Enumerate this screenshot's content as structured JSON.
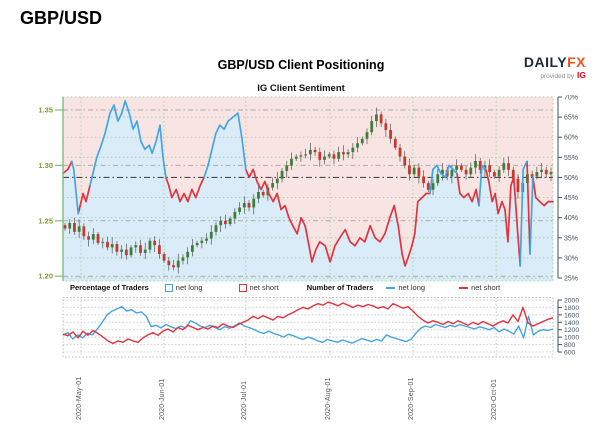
{
  "page": {
    "symbol_title": "GBP/USD"
  },
  "header": {
    "title": "GBP/USD Client Positioning",
    "subtitle": "IG Client Sentiment"
  },
  "logo": {
    "daily": "DAILY",
    "fx": "FX",
    "provided_by": "provided by",
    "ig": "IG"
  },
  "legend": {
    "pct_header": "Percentage of Traders",
    "pct_net_long": "net long",
    "pct_net_short": "net short",
    "num_header": "Number of Traders",
    "num_net_long": "net long",
    "num_net_short": "net short"
  },
  "colors": {
    "sentiment_blue": "#45a5e0",
    "sentiment_red": "#e0343e",
    "candle_up": "#3f7d3b",
    "candle_down": "#c23b2e",
    "wick": "#555555",
    "bg_pink": "#f8e5e3",
    "bg_blue": "#d9ecf8",
    "grid_green": "#a8d3a8",
    "axis_green": "#7cbf7c",
    "axis_olive": "#8b972f",
    "axis_gray_text": "#44505a",
    "fifty_line": "#4a4a4a",
    "price_dash": "#aaaaaa",
    "frame_gray": "#bbbbbb",
    "grid_gray": "#cccccc"
  },
  "chart_data": [
    {
      "type": "candlestick+line",
      "title": "GBP/USD Client Positioning",
      "subtitle": "IG Client Sentiment",
      "price_axis": {
        "ticks": [
          "1.35",
          "1.30",
          "1.25",
          "1.20"
        ],
        "values": [
          1.35,
          1.3,
          1.25,
          1.2
        ]
      },
      "pct_axis": {
        "min": 25,
        "max": 70,
        "step": 5,
        "ticks": [
          "70%",
          "65%",
          "60%",
          "55%",
          "50%",
          "45%",
          "40%",
          "35%",
          "30%",
          "25%"
        ]
      },
      "x_axis": {
        "labels": [
          "2020-May-01",
          "2020-Jun-01",
          "2020-Jul-01",
          "2020-Aug-01",
          "2020-Sep-01",
          "2020-Oct-01"
        ],
        "fractions": [
          0.037,
          0.206,
          0.373,
          0.545,
          0.714,
          0.884
        ]
      },
      "candles": {
        "closes": [
          1.243,
          1.248,
          1.24,
          1.245,
          1.236,
          1.233,
          1.238,
          1.23,
          1.231,
          1.226,
          1.229,
          1.222,
          1.224,
          1.219,
          1.226,
          1.228,
          1.221,
          1.224,
          1.232,
          1.228,
          1.22,
          1.214,
          1.21,
          1.208,
          1.214,
          1.217,
          1.222,
          1.228,
          1.23,
          1.232,
          1.234,
          1.24,
          1.246,
          1.25,
          1.247,
          1.252,
          1.258,
          1.262,
          1.266,
          1.262,
          1.27,
          1.276,
          1.273,
          1.28,
          1.284,
          1.288,
          1.295,
          1.3,
          1.306,
          1.308,
          1.309,
          1.31,
          1.314,
          1.312,
          1.305,
          1.308,
          1.31,
          1.306,
          1.312,
          1.31,
          1.312,
          1.316,
          1.32,
          1.324,
          1.33,
          1.34,
          1.346,
          1.338,
          1.332,
          1.324,
          1.316,
          1.308,
          1.3,
          1.292,
          1.298,
          1.29,
          1.284,
          1.278,
          1.284,
          1.292,
          1.296,
          1.29,
          1.296,
          1.3,
          1.296,
          1.292,
          1.298,
          1.304,
          1.296,
          1.3,
          1.294,
          1.29,
          1.296,
          1.302,
          1.296,
          1.288,
          1.276,
          1.284,
          1.292,
          1.29,
          1.294,
          1.296,
          1.292,
          1.294
        ]
      },
      "sentiment": {
        "name_long": "net long",
        "name_short": "net short",
        "points": [
          [
            0.0,
            51,
            "r"
          ],
          [
            0.01,
            52,
            "r"
          ],
          [
            0.018,
            54,
            "r"
          ],
          [
            0.022,
            52,
            "b"
          ],
          [
            0.031,
            41,
            "b"
          ],
          [
            0.035,
            43,
            "r"
          ],
          [
            0.041,
            46,
            "r"
          ],
          [
            0.047,
            44,
            "r"
          ],
          [
            0.055,
            48,
            "r"
          ],
          [
            0.061,
            51,
            "b"
          ],
          [
            0.069,
            55,
            "b"
          ],
          [
            0.078,
            58,
            "b"
          ],
          [
            0.086,
            61,
            "b"
          ],
          [
            0.096,
            66,
            "b"
          ],
          [
            0.104,
            68,
            "b"
          ],
          [
            0.112,
            64,
            "b"
          ],
          [
            0.12,
            66,
            "b"
          ],
          [
            0.127,
            69,
            "b"
          ],
          [
            0.135,
            66,
            "b"
          ],
          [
            0.143,
            62,
            "b"
          ],
          [
            0.151,
            64,
            "b"
          ],
          [
            0.159,
            59,
            "b"
          ],
          [
            0.167,
            57,
            "b"
          ],
          [
            0.176,
            58,
            "b"
          ],
          [
            0.182,
            56,
            "b"
          ],
          [
            0.19,
            59,
            "b"
          ],
          [
            0.198,
            63,
            "b"
          ],
          [
            0.204,
            55,
            "b"
          ],
          [
            0.21,
            50,
            "b"
          ],
          [
            0.216,
            48,
            "r"
          ],
          [
            0.222,
            45,
            "r"
          ],
          [
            0.231,
            47,
            "r"
          ],
          [
            0.239,
            44,
            "r"
          ],
          [
            0.247,
            46,
            "r"
          ],
          [
            0.255,
            44,
            "r"
          ],
          [
            0.263,
            47,
            "r"
          ],
          [
            0.271,
            45,
            "r"
          ],
          [
            0.28,
            48,
            "r"
          ],
          [
            0.288,
            50,
            "r"
          ],
          [
            0.296,
            53,
            "b"
          ],
          [
            0.304,
            57,
            "b"
          ],
          [
            0.312,
            61,
            "b"
          ],
          [
            0.32,
            63,
            "b"
          ],
          [
            0.329,
            62,
            "b"
          ],
          [
            0.337,
            64,
            "b"
          ],
          [
            0.347,
            65,
            "b"
          ],
          [
            0.357,
            66,
            "b"
          ],
          [
            0.365,
            60,
            "b"
          ],
          [
            0.373,
            52,
            "b"
          ],
          [
            0.38,
            50,
            "r"
          ],
          [
            0.388,
            52,
            "r"
          ],
          [
            0.396,
            49,
            "r"
          ],
          [
            0.404,
            47,
            "r"
          ],
          [
            0.412,
            49,
            "r"
          ],
          [
            0.42,
            46,
            "r"
          ],
          [
            0.429,
            44,
            "r"
          ],
          [
            0.437,
            46,
            "r"
          ],
          [
            0.445,
            42,
            "r"
          ],
          [
            0.453,
            43,
            "r"
          ],
          [
            0.461,
            40,
            "r"
          ],
          [
            0.469,
            38,
            "r"
          ],
          [
            0.478,
            36,
            "r"
          ],
          [
            0.486,
            40,
            "r"
          ],
          [
            0.494,
            38,
            "r"
          ],
          [
            0.502,
            33,
            "r"
          ],
          [
            0.508,
            29,
            "r"
          ],
          [
            0.516,
            32,
            "r"
          ],
          [
            0.524,
            34,
            "r"
          ],
          [
            0.535,
            33,
            "r"
          ],
          [
            0.545,
            29,
            "r"
          ],
          [
            0.555,
            33,
            "r"
          ],
          [
            0.565,
            35,
            "r"
          ],
          [
            0.576,
            37,
            "r"
          ],
          [
            0.586,
            34,
            "r"
          ],
          [
            0.596,
            33,
            "r"
          ],
          [
            0.606,
            35,
            "r"
          ],
          [
            0.616,
            34,
            "r"
          ],
          [
            0.627,
            38,
            "r"
          ],
          [
            0.637,
            35,
            "r"
          ],
          [
            0.647,
            34,
            "r"
          ],
          [
            0.657,
            36,
            "r"
          ],
          [
            0.667,
            40,
            "r"
          ],
          [
            0.676,
            43,
            "r"
          ],
          [
            0.684,
            38,
            "r"
          ],
          [
            0.692,
            31,
            "r"
          ],
          [
            0.698,
            28,
            "r"
          ],
          [
            0.704,
            30,
            "r"
          ],
          [
            0.712,
            33,
            "r"
          ],
          [
            0.718,
            36,
            "r"
          ],
          [
            0.724,
            44,
            "r"
          ],
          [
            0.733,
            45,
            "r"
          ],
          [
            0.741,
            46,
            "r"
          ],
          [
            0.749,
            46,
            "r"
          ],
          [
            0.755,
            52,
            "b"
          ],
          [
            0.763,
            53,
            "b"
          ],
          [
            0.771,
            51,
            "b"
          ],
          [
            0.78,
            50,
            "b"
          ],
          [
            0.788,
            53,
            "b"
          ],
          [
            0.796,
            52,
            "b"
          ],
          [
            0.804,
            51,
            "b"
          ],
          [
            0.81,
            46,
            "r"
          ],
          [
            0.818,
            45,
            "r"
          ],
          [
            0.827,
            46,
            "r"
          ],
          [
            0.835,
            44,
            "r"
          ],
          [
            0.843,
            47,
            "r"
          ],
          [
            0.849,
            43,
            "r"
          ],
          [
            0.855,
            53,
            "b"
          ],
          [
            0.863,
            52,
            "b"
          ],
          [
            0.869,
            49,
            "r"
          ],
          [
            0.876,
            44,
            "r"
          ],
          [
            0.882,
            46,
            "r"
          ],
          [
            0.888,
            41,
            "r"
          ],
          [
            0.896,
            44,
            "r"
          ],
          [
            0.902,
            42,
            "r"
          ],
          [
            0.908,
            34,
            "r"
          ],
          [
            0.914,
            48,
            "r"
          ],
          [
            0.92,
            50,
            "r"
          ],
          [
            0.927,
            38,
            "r"
          ],
          [
            0.933,
            28,
            "r"
          ],
          [
            0.939,
            52,
            "b"
          ],
          [
            0.947,
            54,
            "b"
          ],
          [
            0.953,
            31,
            "r"
          ],
          [
            0.959,
            50,
            "b"
          ],
          [
            0.965,
            45,
            "r"
          ],
          [
            0.973,
            44,
            "r"
          ],
          [
            0.982,
            43,
            "r"
          ],
          [
            0.99,
            44,
            "r"
          ],
          [
            1.0,
            44,
            "r"
          ]
        ]
      }
    },
    {
      "type": "line",
      "y_axis": {
        "min": 600,
        "max": 2000,
        "step": 200,
        "ticks": [
          "2000",
          "1800",
          "1600",
          "1400",
          "1200",
          "1000",
          "800",
          "600"
        ]
      },
      "series": [
        {
          "name": "net long",
          "color_key": "sentiment_blue",
          "values": [
            1060,
            1120,
            950,
            1060,
            980,
            1110,
            1060,
            1220,
            1400,
            1600,
            1700,
            1760,
            1820,
            1700,
            1740,
            1650,
            1680,
            1560,
            1280,
            1320,
            1250,
            1340,
            1280,
            1230,
            1300,
            1250,
            1440,
            1380,
            1300,
            1260,
            1320,
            1260,
            1200,
            1280,
            1240,
            1300,
            1380,
            1300,
            1260,
            1200,
            1140,
            1100,
            1160,
            1100,
            1060,
            1000,
            1080,
            1040,
            980,
            940,
            1000,
            960,
            900,
            860,
            940,
            900,
            860,
            920,
            880,
            840,
            900,
            960,
            920,
            880,
            940,
            900,
            1060,
            1000,
            960,
            920,
            880,
            940,
            1100,
            1240,
            1300,
            1260,
            1340,
            1300,
            1260,
            1320,
            1280,
            1340,
            1300,
            1260,
            1220,
            1280,
            1240,
            1200,
            1260,
            1140,
            1220,
            1160,
            1080,
            1300,
            980,
            1560,
            1060,
            1160,
            1200,
            1180,
            1220
          ]
        },
        {
          "name": "net short",
          "color_key": "sentiment_red",
          "values": [
            1080,
            1040,
            1140,
            980,
            1160,
            1050,
            1180,
            1100,
            1000,
            900,
            830,
            900,
            860,
            950,
            900,
            860,
            980,
            1060,
            1120,
            1050,
            1160,
            1220,
            1140,
            1260,
            1200,
            1320,
            1260,
            1200,
            1260,
            1220,
            1300,
            1260,
            1360,
            1300,
            1260,
            1340,
            1400,
            1460,
            1560,
            1500,
            1580,
            1520,
            1460,
            1560,
            1520,
            1600,
            1660,
            1740,
            1800,
            1760,
            1840,
            1900,
            1860,
            1940,
            1900,
            1840,
            1920,
            1860,
            1800,
            1860,
            1820,
            1880,
            1840,
            1780,
            1820,
            1760,
            1900,
            1840,
            1780,
            1820,
            1700,
            1560,
            1460,
            1380,
            1440,
            1400,
            1340,
            1420,
            1360,
            1440,
            1380,
            1320,
            1400,
            1340,
            1420,
            1360,
            1300,
            1380,
            1440,
            1380,
            1600,
            1420,
            1800,
            1380,
            1300,
            1360,
            1420,
            1480,
            1520
          ]
        }
      ]
    }
  ]
}
